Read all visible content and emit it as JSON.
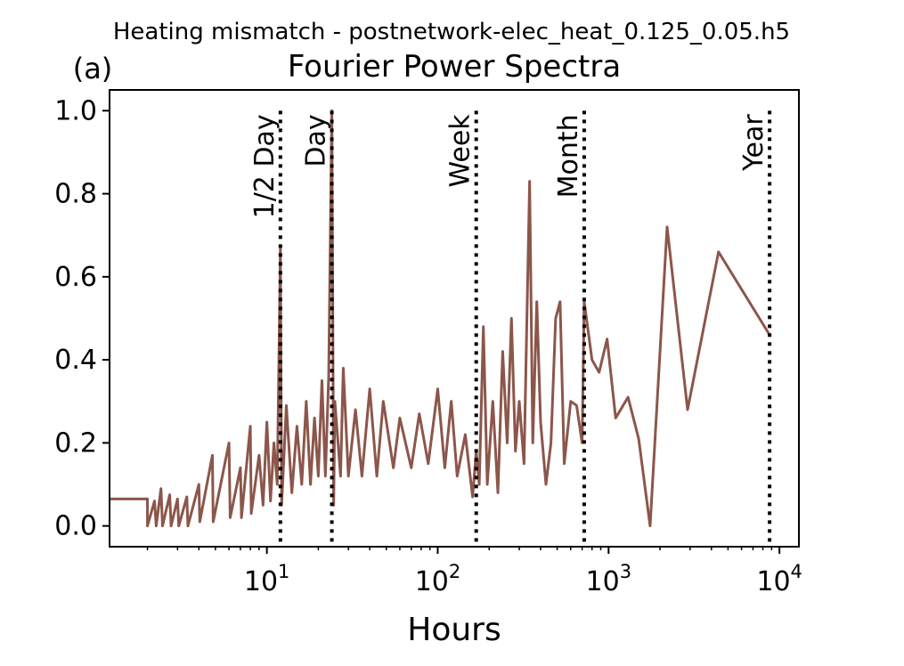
{
  "chart_data": {
    "type": "line",
    "suptitle": "Heating mismatch - postnetwork-elec_heat_0.125_0.05.h5",
    "panel_label": "(a)",
    "title": "Fourier Power Spectra",
    "xlabel": "Hours",
    "ylabel": "",
    "xscale": "log",
    "xlim": [
      1.2,
      13000
    ],
    "ylim": [
      -0.05,
      1.05
    ],
    "yticks": [
      0.0,
      0.2,
      0.4,
      0.6,
      0.8,
      1.0
    ],
    "ytick_labels": [
      "0.0",
      "0.2",
      "0.4",
      "0.6",
      "0.8",
      "1.0"
    ],
    "xticks": [
      10,
      100,
      1000,
      10000
    ],
    "xtick_base": "10",
    "xtick_exponents": [
      "1",
      "2",
      "3",
      "4"
    ],
    "grid": false,
    "line_color": "#8c564b",
    "reference_color": "#000000",
    "reference_lines": [
      {
        "label": "1/2 Day",
        "x": 12
      },
      {
        "label": "Day",
        "x": 24
      },
      {
        "label": "Week",
        "x": 168
      },
      {
        "label": "Month",
        "x": 720
      },
      {
        "label": "Year",
        "x": 8760
      }
    ],
    "series": [
      {
        "peaks": [
          [
            1.2,
            0.065
          ],
          [
            2.0,
            0.065
          ],
          [
            2.0,
            0.0
          ],
          [
            2.2,
            0.06
          ],
          [
            2.25,
            0.0
          ],
          [
            2.4,
            0.09
          ],
          [
            2.45,
            0.0
          ],
          [
            2.7,
            0.075
          ],
          [
            2.75,
            0.0
          ],
          [
            3.0,
            0.065
          ],
          [
            3.05,
            0.0
          ],
          [
            3.4,
            0.07
          ],
          [
            3.45,
            0.0
          ],
          [
            4.0,
            0.1
          ],
          [
            4.05,
            0.01
          ],
          [
            4.8,
            0.17
          ],
          [
            4.85,
            0.01
          ],
          [
            6.0,
            0.2
          ],
          [
            6.1,
            0.02
          ],
          [
            7.0,
            0.14
          ],
          [
            7.1,
            0.02
          ],
          [
            8.0,
            0.24
          ],
          [
            8.1,
            0.03
          ],
          [
            9.0,
            0.17
          ],
          [
            9.5,
            0.05
          ],
          [
            10.0,
            0.25
          ],
          [
            10.5,
            0.06
          ],
          [
            11.0,
            0.2
          ],
          [
            11.5,
            0.1
          ],
          [
            12.0,
            0.67
          ],
          [
            12.2,
            0.05
          ],
          [
            13.0,
            0.29
          ],
          [
            14.0,
            0.08
          ],
          [
            15.0,
            0.24
          ],
          [
            16.0,
            0.1
          ],
          [
            17.0,
            0.3
          ],
          [
            18.0,
            0.1
          ],
          [
            19.0,
            0.26
          ],
          [
            20.0,
            0.12
          ],
          [
            21.0,
            0.35
          ],
          [
            22.0,
            0.12
          ],
          [
            23.0,
            0.36
          ],
          [
            24.0,
            1.0
          ],
          [
            24.6,
            0.05
          ],
          [
            25.0,
            0.3
          ],
          [
            27.0,
            0.12
          ],
          [
            28.0,
            0.38
          ],
          [
            30.0,
            0.12
          ],
          [
            33.0,
            0.28
          ],
          [
            36.0,
            0.12
          ],
          [
            40.0,
            0.33
          ],
          [
            44.0,
            0.12
          ],
          [
            48.0,
            0.3
          ],
          [
            55.0,
            0.14
          ],
          [
            60.0,
            0.26
          ],
          [
            70.0,
            0.14
          ],
          [
            78.0,
            0.27
          ],
          [
            88.0,
            0.15
          ],
          [
            100.0,
            0.33
          ],
          [
            110.0,
            0.14
          ],
          [
            120.0,
            0.3
          ],
          [
            130.0,
            0.12
          ],
          [
            145.0,
            0.22
          ],
          [
            160.0,
            0.07
          ],
          [
            168.0,
            0.18
          ],
          [
            175.0,
            0.1
          ],
          [
            185.0,
            0.48
          ],
          [
            195.0,
            0.1
          ],
          [
            210.0,
            0.3
          ],
          [
            225.0,
            0.08
          ],
          [
            240.0,
            0.42
          ],
          [
            255.0,
            0.2
          ],
          [
            270.0,
            0.5
          ],
          [
            285.0,
            0.18
          ],
          [
            300.0,
            0.3
          ],
          [
            320.0,
            0.15
          ],
          [
            345.0,
            0.83
          ],
          [
            360.0,
            0.2
          ],
          [
            380.0,
            0.54
          ],
          [
            400.0,
            0.25
          ],
          [
            430.0,
            0.1
          ],
          [
            460.0,
            0.2
          ],
          [
            490.0,
            0.5
          ],
          [
            520.0,
            0.54
          ],
          [
            550.0,
            0.15
          ],
          [
            600.0,
            0.3
          ],
          [
            650.0,
            0.29
          ],
          [
            700.0,
            0.2
          ],
          [
            720.0,
            0.54
          ],
          [
            800.0,
            0.4
          ],
          [
            880.0,
            0.37
          ],
          [
            980.0,
            0.45
          ],
          [
            1100.0,
            0.26
          ],
          [
            1300.0,
            0.31
          ],
          [
            1500.0,
            0.21
          ],
          [
            1750.0,
            0.0
          ],
          [
            2200.0,
            0.72
          ],
          [
            2900.0,
            0.28
          ],
          [
            4400.0,
            0.66
          ],
          [
            8760.0,
            0.46
          ]
        ]
      }
    ]
  }
}
